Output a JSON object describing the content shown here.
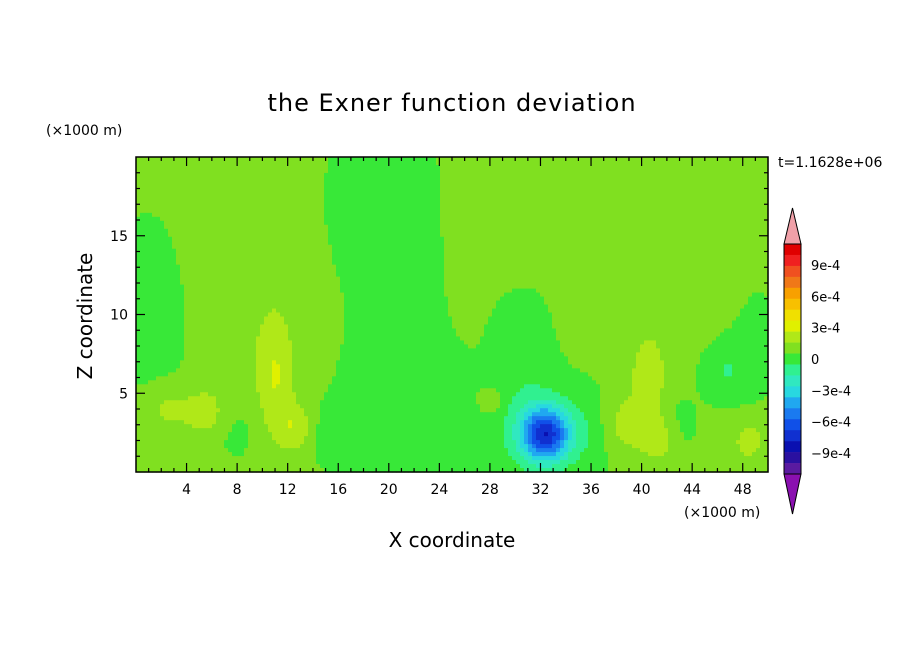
{
  "chart_data": {
    "type": "heatmap",
    "title": "the Exner function deviation",
    "xlabel": "X coordinate",
    "ylabel": "Z coordinate",
    "x_unit": "(×1000 m)",
    "y_unit": "(×1000 m)",
    "time_label": "t=1.1628e+06",
    "xlim": [
      0,
      50
    ],
    "ylim": [
      0,
      20
    ],
    "x_ticks": [
      4,
      8,
      12,
      16,
      20,
      24,
      28,
      32,
      36,
      40,
      44,
      48
    ],
    "y_ticks": [
      5,
      10,
      15
    ],
    "colorbar": {
      "levels": [
        -0.0011,
        -0.001,
        -0.0009,
        -0.0008,
        -0.0007,
        -0.0006,
        -0.0005,
        -0.0004,
        -0.0003,
        -0.0002,
        -0.0001,
        0,
        0.0001,
        0.0002,
        0.0003,
        0.0004,
        0.0005,
        0.0006,
        0.0007,
        0.0008,
        0.0009,
        0.001,
        0.0011
      ],
      "colors": [
        "#8a10b0",
        "#5a1aa0",
        "#2a10a0",
        "#0a10b0",
        "#1030d0",
        "#1050e8",
        "#1a7af0",
        "#20a8f0",
        "#28d8e0",
        "#30e8c0",
        "#30f090",
        "#38e838",
        "#80e020",
        "#b0e818",
        "#e0f000",
        "#f0e000",
        "#f8c000",
        "#f8a000",
        "#f07818",
        "#f05020",
        "#f02020",
        "#e00000",
        "#f0a0a8"
      ],
      "tick_labels": [
        "9e-4",
        "6e-4",
        "3e-4",
        "0",
        "−3e-4",
        "−6e-4",
        "−9e-4"
      ],
      "tick_values": [
        0.0009,
        0.0006,
        0.0003,
        0,
        -0.0003,
        -0.0006,
        -0.0009
      ]
    },
    "background_value": 2e-05,
    "features": [
      {
        "x": 32.4,
        "z": 2.4,
        "rx": 1.9,
        "rz": 1.7,
        "amp": -0.0007
      },
      {
        "x": 32.4,
        "z": 2.6,
        "rx": 3.6,
        "rz": 3.2,
        "amp": -0.0001
      },
      {
        "x": 30.5,
        "z": 6.5,
        "rx": 2.5,
        "rz": 5.5,
        "amp": -7e-05
      },
      {
        "x": 20.5,
        "z": 3.5,
        "rx": 4.5,
        "rz": 5.0,
        "amp": -0.00011
      },
      {
        "x": 26.0,
        "z": 2.5,
        "rx": 3.0,
        "rz": 3.0,
        "amp": -5e-05
      },
      {
        "x": 1.5,
        "z": 10.0,
        "rx": 3.5,
        "rz": 7.0,
        "amp": -6e-05
      },
      {
        "x": 10.0,
        "z": 13.0,
        "rx": 6.0,
        "rz": 9.0,
        "amp": 6e-05
      },
      {
        "x": 45.5,
        "z": 13.0,
        "rx": 4.0,
        "rz": 7.0,
        "amp": 6e-05
      },
      {
        "x": 48.5,
        "z": 9.0,
        "rx": 2.5,
        "rz": 5.0,
        "amp": -6e-05
      },
      {
        "x": 46.5,
        "z": 6.5,
        "rx": 2.0,
        "rz": 2.0,
        "amp": -0.00012
      },
      {
        "x": 11.0,
        "z": 6.0,
        "rx": 1.4,
        "rz": 3.5,
        "amp": 0.00016
      },
      {
        "x": 12.6,
        "z": 2.8,
        "rx": 1.5,
        "rz": 1.5,
        "amp": 0.00015
      },
      {
        "x": 5.5,
        "z": 3.8,
        "rx": 1.5,
        "rz": 1.5,
        "amp": 0.00013
      },
      {
        "x": 40.5,
        "z": 6.0,
        "rx": 1.4,
        "rz": 2.8,
        "amp": 0.00015
      },
      {
        "x": 39.0,
        "z": 3.0,
        "rx": 2.0,
        "rz": 1.6,
        "amp": 0.00014
      },
      {
        "x": 41.5,
        "z": 2.0,
        "rx": 1.5,
        "rz": 1.5,
        "amp": 0.00012
      },
      {
        "x": 15.0,
        "z": 2.5,
        "rx": 1.5,
        "rz": 1.8,
        "amp": -6e-05
      },
      {
        "x": 8.0,
        "z": 2.5,
        "rx": 2.0,
        "rz": 2.0,
        "amp": -5e-05
      },
      {
        "x": 2.5,
        "z": 4.0,
        "rx": 2.0,
        "rz": 1.5,
        "amp": 0.00012
      },
      {
        "x": 36.0,
        "z": 2.5,
        "rx": 1.5,
        "rz": 2.5,
        "amp": -6e-05
      },
      {
        "x": 43.0,
        "z": 3.0,
        "rx": 1.5,
        "rz": 2.0,
        "amp": -6e-05
      },
      {
        "x": 28.0,
        "z": 4.5,
        "rx": 1.0,
        "rz": 0.8,
        "amp": 0.00012
      },
      {
        "x": 18.5,
        "z": 16.0,
        "rx": 7.0,
        "rz": 7.0,
        "amp": -6e-05
      },
      {
        "x": 29.0,
        "z": 16.5,
        "rx": 4.0,
        "rz": 4.0,
        "amp": 5e-05
      },
      {
        "x": 48.5,
        "z": 2.0,
        "rx": 1.5,
        "rz": 1.5,
        "amp": 0.00012
      }
    ]
  }
}
